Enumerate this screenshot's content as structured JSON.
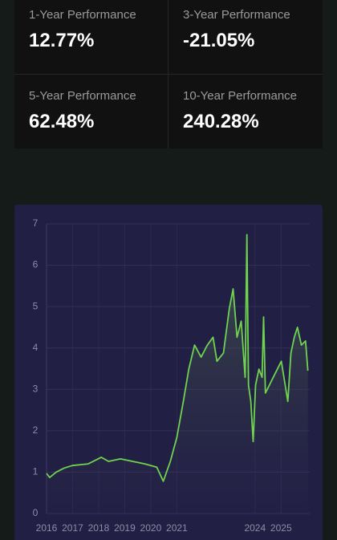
{
  "cards": [
    {
      "label": "1-Year Performance",
      "value": "12.77%"
    },
    {
      "label": "3-Year Performance",
      "value": "-21.05%"
    },
    {
      "label": "5-Year Performance",
      "value": "62.48%"
    },
    {
      "label": "10-Year Performance",
      "value": "240.28%"
    }
  ],
  "chart_data": {
    "type": "line",
    "color": "#6fd34f",
    "grid": true,
    "x": [
      2016.0,
      2016.12,
      2016.37,
      2016.68,
      2016.99,
      2017.6,
      2018.1,
      2018.38,
      2018.84,
      2019.3,
      2019.77,
      2020.23,
      2020.48,
      2020.75,
      2021.0,
      2021.25,
      2021.46,
      2021.68,
      2021.93,
      2022.17,
      2022.39,
      2022.54,
      2022.79,
      2023.01,
      2023.16,
      2023.31,
      2023.47,
      2023.62,
      2023.69,
      2023.75,
      2023.84,
      2023.93,
      2024.02,
      2024.15,
      2024.27,
      2024.33,
      2024.4,
      2024.7,
      2025.01,
      2025.26,
      2025.38,
      2025.51,
      2025.63,
      2025.78,
      2025.94,
      2026.03
    ],
    "values": [
      0.97,
      0.87,
      1.0,
      1.1,
      1.16,
      1.2,
      1.36,
      1.26,
      1.32,
      1.26,
      1.2,
      1.12,
      0.78,
      1.26,
      1.84,
      2.71,
      3.49,
      4.07,
      3.78,
      4.07,
      4.26,
      3.68,
      3.88,
      4.94,
      5.43,
      4.26,
      4.65,
      3.29,
      6.74,
      3.1,
      2.71,
      1.74,
      3.1,
      3.49,
      3.29,
      4.75,
      2.91,
      3.29,
      3.68,
      2.71,
      3.88,
      4.26,
      4.5,
      4.07,
      4.17,
      3.45
    ],
    "xlim": [
      2016,
      2026.1
    ],
    "xticks": [
      2016,
      2017,
      2018,
      2019,
      2020,
      2021,
      2024,
      2025
    ],
    "ylim": [
      0,
      7
    ],
    "yticks": [
      0,
      1,
      2,
      3,
      4,
      5,
      6,
      7
    ]
  }
}
